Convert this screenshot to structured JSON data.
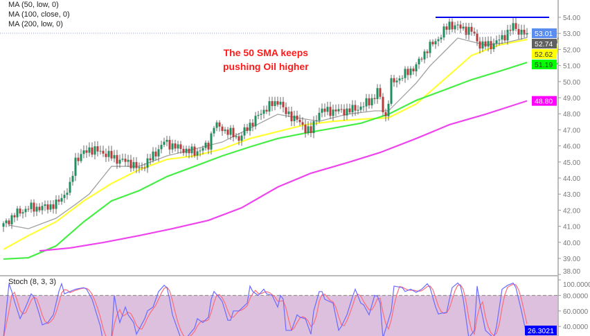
{
  "legend": {
    "ma_items": [
      "MA (50, low, 0)",
      "MA (100, close, 0)",
      "MA (200, low, 0)"
    ]
  },
  "annotation": {
    "line1": "The 50 SMA keeps",
    "line2": "pushing Oil higher",
    "color": "#ff1a1a"
  },
  "chart_data": [
    {
      "type": "candlestick",
      "pane": "price",
      "ylim": [
        37.9,
        54.9
      ],
      "y_ticks": [
        "54.00",
        "53.00",
        "52.00",
        "51.00",
        "50.00",
        "49.00",
        "48.00",
        "47.00",
        "46.00",
        "45.00",
        "44.00",
        "43.00",
        "42.00",
        "41.00",
        "40.00",
        "39.00",
        "38.00"
      ],
      "close_keypoints": [
        [
          0,
          41.07
        ],
        [
          4,
          41.72
        ],
        [
          9,
          42.15
        ],
        [
          14,
          42.15
        ],
        [
          19,
          42.36
        ],
        [
          24,
          43.44
        ],
        [
          26,
          45.16
        ],
        [
          31,
          45.81
        ],
        [
          36,
          45.59
        ],
        [
          41,
          45.16
        ],
        [
          46,
          44.95
        ],
        [
          49,
          44.52
        ],
        [
          54,
          45.38
        ],
        [
          58,
          46.24
        ],
        [
          64,
          45.81
        ],
        [
          69,
          45.59
        ],
        [
          74,
          46.03
        ],
        [
          76,
          47.32
        ],
        [
          81,
          46.89
        ],
        [
          85,
          46.46
        ],
        [
          89,
          47.32
        ],
        [
          95,
          48.4
        ],
        [
          100,
          48.83
        ],
        [
          101,
          48.18
        ],
        [
          105,
          47.75
        ],
        [
          109,
          47.1
        ],
        [
          111,
          46.89
        ],
        [
          114,
          48.18
        ],
        [
          119,
          48.18
        ],
        [
          124,
          48.18
        ],
        [
          129,
          48.4
        ],
        [
          134,
          49.04
        ],
        [
          135,
          49.47
        ],
        [
          138,
          47.75
        ],
        [
          140,
          49.91
        ],
        [
          144,
          50.34
        ],
        [
          149,
          50.98
        ],
        [
          153,
          52.06
        ],
        [
          156,
          52.49
        ],
        [
          161,
          53.57
        ],
        [
          165,
          53.35
        ],
        [
          169,
          53.14
        ],
        [
          172,
          52.28
        ],
        [
          176,
          52.28
        ],
        [
          180,
          52.71
        ],
        [
          184,
          53.44
        ],
        [
          186,
          53.14
        ],
        [
          189,
          53.01
        ]
      ],
      "last_price": {
        "label": "53.01",
        "color": "#5b8def"
      },
      "up_color": "#1f8f5f",
      "down_color": "#b83a3a",
      "moving_averages": [
        {
          "color": "#a0a0a0",
          "last_label": "52.74",
          "label_bg": "#606060",
          "label_fg": "#ffffff",
          "points": [
            [
              2,
              41.07
            ],
            [
              9,
              40.85
            ],
            [
              19,
              41.5
            ],
            [
              26,
              42.36
            ],
            [
              31,
              43.01
            ],
            [
              39,
              44.73
            ],
            [
              49,
              44.73
            ],
            [
              59,
              45.38
            ],
            [
              69,
              45.81
            ],
            [
              79,
              46.24
            ],
            [
              89,
              47.1
            ],
            [
              99,
              47.97
            ],
            [
              106,
              47.75
            ],
            [
              114,
              47.53
            ],
            [
              124,
              47.97
            ],
            [
              134,
              48.18
            ],
            [
              139,
              48.18
            ],
            [
              144,
              49.04
            ],
            [
              149,
              49.91
            ],
            [
              154,
              50.98
            ],
            [
              159,
              51.84
            ],
            [
              164,
              52.71
            ],
            [
              169,
              52.49
            ],
            [
              174,
              52.28
            ],
            [
              181,
              52.41
            ],
            [
              189,
              52.74
            ]
          ]
        },
        {
          "color": "#ffff33",
          "last_label": "52.62",
          "label_bg": "#ffff00",
          "label_fg": "#333333",
          "points": [
            [
              0,
              39.56
            ],
            [
              9,
              40.42
            ],
            [
              19,
              41.28
            ],
            [
              29,
              42.58
            ],
            [
              39,
              43.66
            ],
            [
              49,
              44.52
            ],
            [
              59,
              45.16
            ],
            [
              69,
              45.38
            ],
            [
              79,
              45.81
            ],
            [
              89,
              46.46
            ],
            [
              99,
              46.89
            ],
            [
              109,
              47.32
            ],
            [
              119,
              47.53
            ],
            [
              129,
              47.66
            ],
            [
              139,
              47.75
            ],
            [
              149,
              48.61
            ],
            [
              159,
              50.12
            ],
            [
              169,
              51.63
            ],
            [
              179,
              52.28
            ],
            [
              189,
              52.62
            ]
          ]
        },
        {
          "color": "#44ee44",
          "last_label": "51.19",
          "label_bg": "#00ff00",
          "label_fg": "#333333",
          "points": [
            [
              0,
              38.96
            ],
            [
              9,
              39.04
            ],
            [
              19,
              39.78
            ],
            [
              29,
              41.28
            ],
            [
              39,
              42.58
            ],
            [
              49,
              43.22
            ],
            [
              59,
              44.09
            ],
            [
              69,
              44.73
            ],
            [
              79,
              45.38
            ],
            [
              89,
              45.94
            ],
            [
              99,
              46.46
            ],
            [
              109,
              46.8
            ],
            [
              119,
              47.1
            ],
            [
              129,
              47.41
            ],
            [
              139,
              47.97
            ],
            [
              149,
              48.83
            ],
            [
              159,
              49.47
            ],
            [
              169,
              50.12
            ],
            [
              179,
              50.64
            ],
            [
              189,
              51.19
            ]
          ]
        },
        {
          "color": "#ee44ee",
          "last_label": "48.80",
          "label_bg": "#ff00ff",
          "label_fg": "#ffffff",
          "points": [
            [
              13,
              39.47
            ],
            [
              24,
              39.65
            ],
            [
              36,
              39.99
            ],
            [
              49,
              40.42
            ],
            [
              61,
              40.85
            ],
            [
              74,
              41.37
            ],
            [
              86,
              42.15
            ],
            [
              99,
              43.44
            ],
            [
              111,
              44.3
            ],
            [
              124,
              44.95
            ],
            [
              136,
              45.59
            ],
            [
              149,
              46.46
            ],
            [
              161,
              47.32
            ],
            [
              174,
              47.97
            ],
            [
              189,
              48.8
            ]
          ]
        }
      ],
      "resistance_line": {
        "value": 54.0,
        "from": 156,
        "to": 197,
        "color": "#0000ee"
      }
    },
    {
      "type": "line",
      "pane": "stochastic",
      "title": "Stoch (8, 3, 3)",
      "ylim": [
        27.5,
        100
      ],
      "y_ticks": [
        "100.0000",
        "80.0000",
        "60.0000",
        "40.0000"
      ],
      "overbought_level": 80,
      "fill_color": "#dcc0de",
      "k_color": "#6a6aff",
      "d_color": "#ff6a7a",
      "last_label": "26.3021",
      "last_label_bg": "#0000ff",
      "k_points": [
        [
          0,
          25
        ],
        [
          2,
          95
        ],
        [
          3,
          85
        ],
        [
          4,
          72
        ],
        [
          6,
          50
        ],
        [
          8,
          65
        ],
        [
          10,
          82
        ],
        [
          11,
          78
        ],
        [
          13,
          55
        ],
        [
          14,
          42
        ],
        [
          16,
          45
        ],
        [
          18,
          55
        ],
        [
          20,
          85
        ],
        [
          21,
          95
        ],
        [
          22,
          82
        ],
        [
          24,
          85
        ],
        [
          26,
          88
        ],
        [
          29,
          90
        ],
        [
          30,
          88
        ],
        [
          32,
          75
        ],
        [
          35,
          40
        ],
        [
          36,
          20
        ],
        [
          39,
          25
        ],
        [
          40,
          80
        ],
        [
          41,
          60
        ],
        [
          42,
          45
        ],
        [
          44,
          65
        ],
        [
          45,
          55
        ],
        [
          47,
          45
        ],
        [
          48,
          30
        ],
        [
          51,
          50
        ],
        [
          52,
          60
        ],
        [
          54,
          65
        ],
        [
          56,
          85
        ],
        [
          58,
          93
        ],
        [
          59,
          90
        ],
        [
          60,
          75
        ],
        [
          61,
          55
        ],
        [
          64,
          25
        ],
        [
          66,
          25
        ],
        [
          69,
          38
        ],
        [
          70,
          50
        ],
        [
          72,
          45
        ],
        [
          74,
          52
        ],
        [
          75,
          75
        ],
        [
          76,
          85
        ],
        [
          78,
          77
        ],
        [
          79,
          72
        ],
        [
          81,
          48
        ],
        [
          82,
          48
        ],
        [
          83,
          60
        ],
        [
          85,
          60
        ],
        [
          88,
          70
        ],
        [
          89,
          92
        ],
        [
          90,
          85
        ],
        [
          92,
          80
        ],
        [
          94,
          88
        ],
        [
          95,
          82
        ],
        [
          97,
          80
        ],
        [
          99,
          65
        ],
        [
          100,
          80
        ],
        [
          101,
          75
        ],
        [
          101,
          88
        ],
        [
          102,
          35
        ],
        [
          104,
          35
        ],
        [
          106,
          55
        ],
        [
          107,
          52
        ],
        [
          109,
          50
        ],
        [
          111,
          30
        ],
        [
          112,
          60
        ],
        [
          114,
          85
        ],
        [
          115,
          85
        ],
        [
          116,
          75
        ],
        [
          119,
          70
        ],
        [
          121,
          35
        ],
        [
          122,
          40
        ],
        [
          124,
          55
        ],
        [
          126,
          78
        ],
        [
          127,
          88
        ],
        [
          129,
          70
        ],
        [
          130,
          68
        ],
        [
          132,
          55
        ],
        [
          134,
          80
        ],
        [
          134,
          88
        ],
        [
          136,
          70
        ],
        [
          137,
          25
        ],
        [
          140,
          60
        ],
        [
          141,
          92
        ],
        [
          144,
          90
        ],
        [
          145,
          85
        ],
        [
          147,
          88
        ],
        [
          149,
          84
        ],
        [
          151,
          88
        ],
        [
          153,
          95
        ],
        [
          154,
          90
        ],
        [
          156,
          65
        ],
        [
          156,
          55
        ],
        [
          158,
          57
        ],
        [
          160,
          58
        ],
        [
          161,
          75
        ],
        [
          162,
          90
        ],
        [
          164,
          96
        ],
        [
          165,
          92
        ],
        [
          166,
          75
        ],
        [
          168,
          25
        ],
        [
          170,
          35
        ],
        [
          171,
          92
        ],
        [
          172,
          70
        ],
        [
          174,
          35
        ],
        [
          177,
          25
        ],
        [
          178,
          40
        ],
        [
          180,
          88
        ],
        [
          182,
          93
        ],
        [
          184,
          96
        ],
        [
          185,
          90
        ],
        [
          187,
          60
        ],
        [
          189,
          26.3
        ]
      ]
    }
  ]
}
